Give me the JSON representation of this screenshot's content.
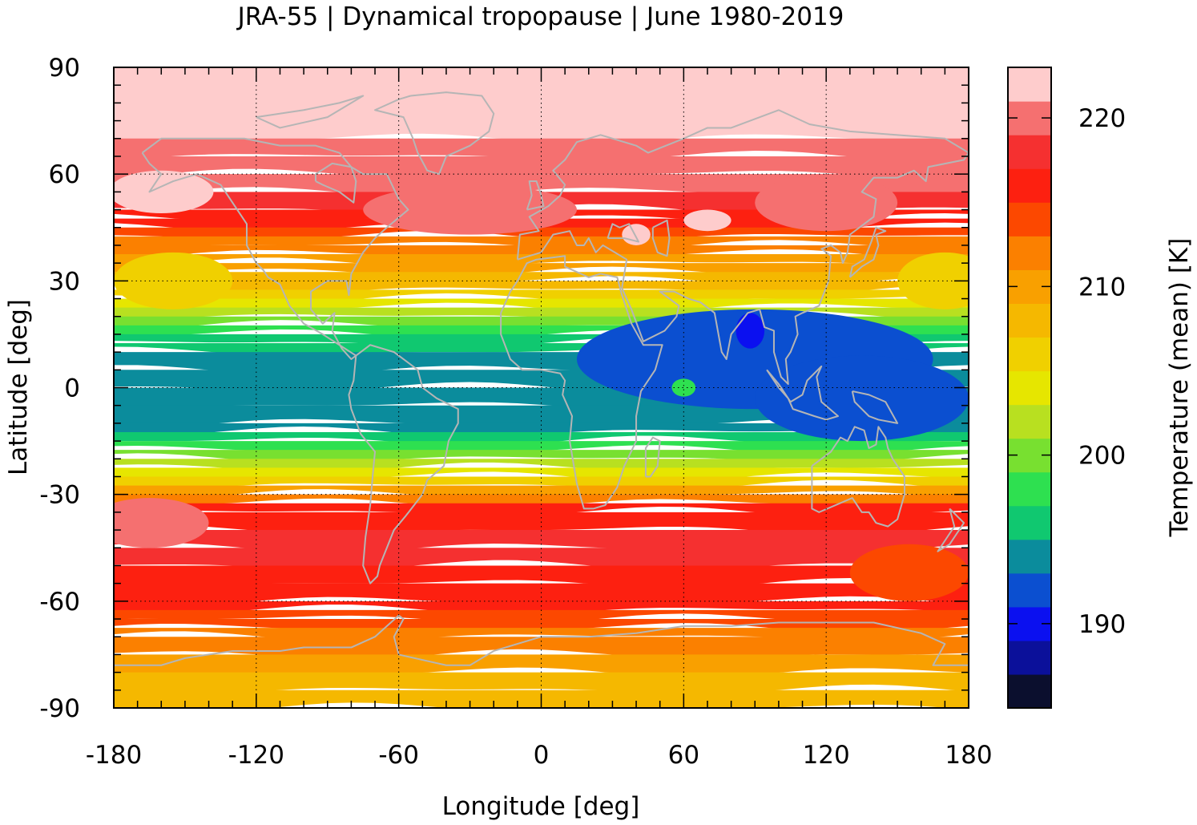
{
  "title": "JRA-55 | Dynamical tropopause | June 1980-2019",
  "x_axis": {
    "label": "Longitude [deg]",
    "range": [
      -180,
      180
    ],
    "ticks": [
      -180,
      -120,
      -60,
      0,
      60,
      120,
      180
    ],
    "tick_labels": [
      "-180",
      "-120",
      "-60",
      "0",
      "60",
      "120",
      "180"
    ],
    "minor_step": 10
  },
  "y_axis": {
    "label": "Latitude [deg]",
    "range": [
      -90,
      90
    ],
    "ticks": [
      90,
      60,
      30,
      0,
      -30,
      -60,
      -90
    ],
    "tick_labels": [
      "90",
      "60",
      "30",
      "0",
      "-30",
      "-60",
      "-90"
    ],
    "minor_step": 5
  },
  "grid": "dotted at labeled ticks",
  "colorbar": {
    "label": "Temperature (mean) [K]",
    "range": [
      185,
      223
    ],
    "levels": [
      185,
      187,
      189,
      191,
      193,
      195,
      197,
      199,
      201,
      203,
      205,
      207,
      209,
      211,
      213,
      215,
      217,
      219,
      221,
      223
    ],
    "colors": [
      "#0b0f2e",
      "#0b109a",
      "#0b10f0",
      "#0b4fd0",
      "#0b8c9c",
      "#10c870",
      "#2ee050",
      "#78e030",
      "#b8e020",
      "#e6e600",
      "#f0d000",
      "#f5b800",
      "#f9a000",
      "#fb8000",
      "#fc4800",
      "#fd2010",
      "#f53030",
      "#f57070",
      "#fecccc"
    ],
    "tick_values": [
      190,
      200,
      210,
      220
    ],
    "tick_labels": [
      "190",
      "200",
      "210",
      "220"
    ]
  },
  "map_field": {
    "type": "filled-contour",
    "variable": "tropopause temperature",
    "coastlines_color": "#b5b5b5",
    "zonal_bands": [
      {
        "lat_range": [
          70,
          90
        ],
        "value_K": 222
      },
      {
        "lat_range": [
          55,
          70
        ],
        "value_K": 220
      },
      {
        "lat_range": [
          42,
          50
        ],
        "value_K": 217
      },
      {
        "lat_range": [
          32,
          40
        ],
        "value_K": 212
      },
      {
        "lat_range": [
          22,
          30
        ],
        "value_K": 206
      },
      {
        "lat_range": [
          10,
          20
        ],
        "value_K": 197
      },
      {
        "lat_range": [
          -10,
          10
        ],
        "value_K": 193
      },
      {
        "lat_range": [
          -22,
          -15
        ],
        "value_K": 199
      },
      {
        "lat_range": [
          -30,
          -24
        ],
        "value_K": 208
      },
      {
        "lat_range": [
          -65,
          -32
        ],
        "value_K": 216
      },
      {
        "lat_range": [
          -80,
          -65
        ],
        "value_K": 211
      },
      {
        "lat_range": [
          -90,
          -80
        ],
        "value_K": 207
      }
    ]
  },
  "chart_data": {
    "type": "heatmap",
    "title": "JRA-55 | Dynamical tropopause | June 1980-2019",
    "xlabel": "Longitude [deg]",
    "ylabel": "Latitude [deg]",
    "xlim": [
      -180,
      180
    ],
    "ylim": [
      -90,
      90
    ],
    "colorbar_label": "Temperature (mean) [K]"
  }
}
